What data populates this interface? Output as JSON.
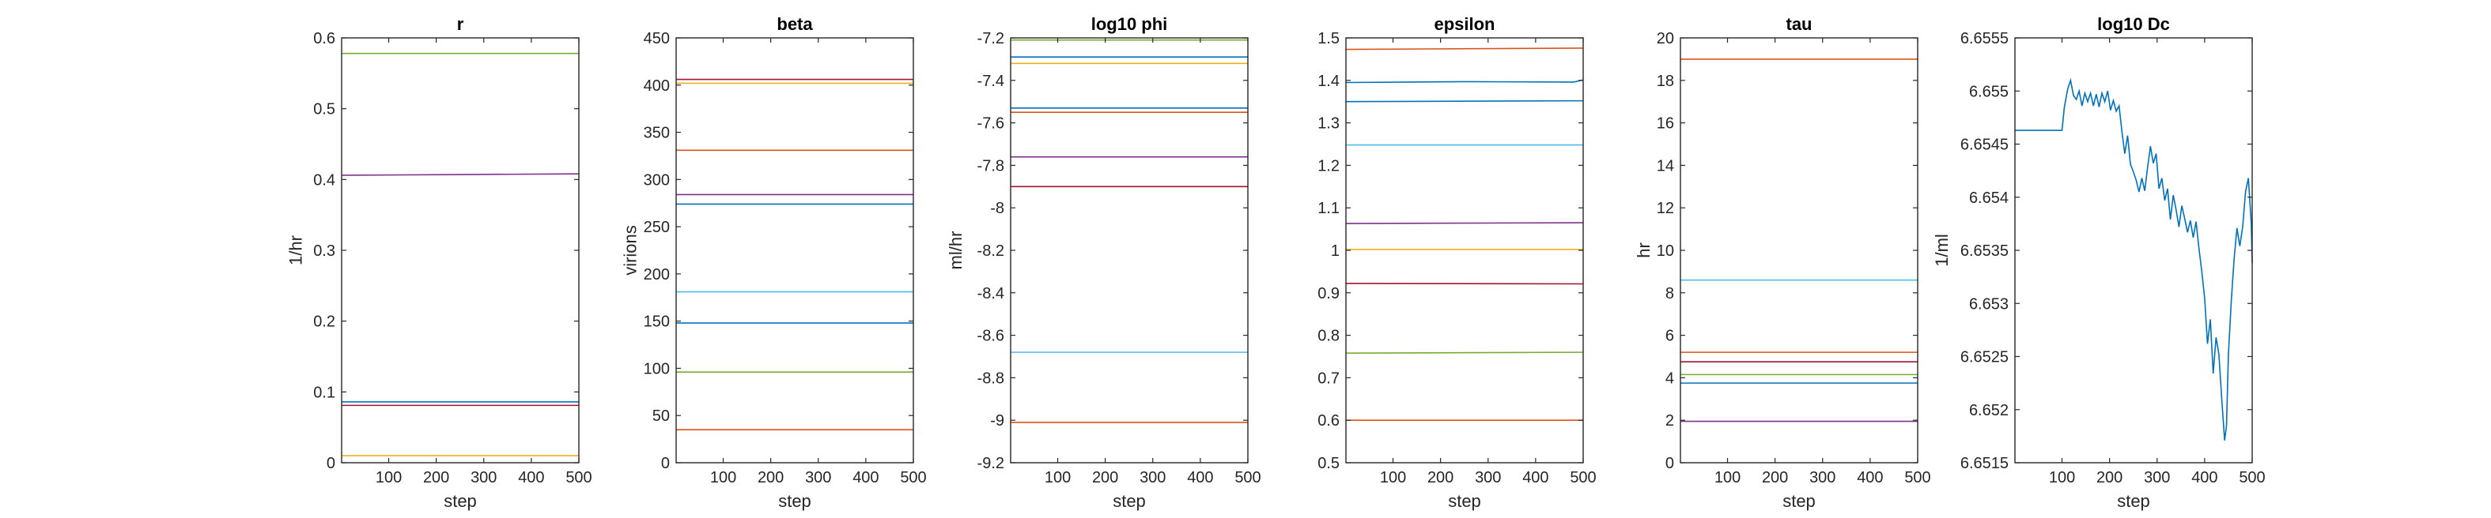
{
  "chart_data": [
    {
      "type": "line",
      "title": "r",
      "xlabel": "step",
      "ylabel": "1/hr",
      "xlim": [
        1,
        500
      ],
      "ylim": [
        0,
        0.6
      ],
      "xticks": [
        100,
        200,
        300,
        400,
        500
      ],
      "yticks": [
        0,
        0.1,
        0.2,
        0.3,
        0.4,
        0.5,
        0.6
      ],
      "xtick_labels": [
        "100",
        "200",
        "300",
        "400",
        "500"
      ],
      "ytick_labels": [
        "0",
        "0.1",
        "0.2",
        "0.3",
        "0.4",
        "0.5",
        "0.6"
      ],
      "series": [
        {
          "color": "#77ac30",
          "x": [
            1,
            500
          ],
          "y": [
            0.578,
            0.578
          ]
        },
        {
          "color": "#7e2f8e",
          "x": [
            1,
            250,
            500
          ],
          "y": [
            0.406,
            0.407,
            0.408
          ]
        },
        {
          "color": "#0072bd",
          "x": [
            1,
            500
          ],
          "y": [
            0.086,
            0.086
          ]
        },
        {
          "color": "#a2142f",
          "x": [
            1,
            500
          ],
          "y": [
            0.081,
            0.081
          ]
        },
        {
          "color": "#edb120",
          "x": [
            1,
            500
          ],
          "y": [
            0.01,
            0.01
          ]
        }
      ]
    },
    {
      "type": "line",
      "title": "beta",
      "xlabel": "step",
      "ylabel": "virions",
      "xlim": [
        1,
        500
      ],
      "ylim": [
        0,
        450
      ],
      "xticks": [
        100,
        200,
        300,
        400,
        500
      ],
      "yticks": [
        0,
        50,
        100,
        150,
        200,
        250,
        300,
        350,
        400,
        450
      ],
      "xtick_labels": [
        "100",
        "200",
        "300",
        "400",
        "500"
      ],
      "ytick_labels": [
        "0",
        "50",
        "100",
        "150",
        "200",
        "250",
        "300",
        "350",
        "400",
        "450"
      ],
      "series": [
        {
          "color": "#a2142f",
          "x": [
            1,
            500
          ],
          "y": [
            406,
            406
          ]
        },
        {
          "color": "#edb120",
          "x": [
            1,
            500
          ],
          "y": [
            402,
            402
          ]
        },
        {
          "color": "#d95319",
          "x": [
            1,
            500
          ],
          "y": [
            331,
            331
          ]
        },
        {
          "color": "#7e2f8e",
          "x": [
            1,
            500
          ],
          "y": [
            284,
            284
          ]
        },
        {
          "color": "#0072bd",
          "x": [
            1,
            500
          ],
          "y": [
            274,
            274
          ]
        },
        {
          "color": "#4dbeee",
          "x": [
            1,
            500
          ],
          "y": [
            181,
            181
          ]
        },
        {
          "color": "#0072bd",
          "x": [
            1,
            500
          ],
          "y": [
            148,
            148
          ]
        },
        {
          "color": "#77ac30",
          "x": [
            1,
            500
          ],
          "y": [
            96,
            96
          ]
        },
        {
          "color": "#d95319",
          "x": [
            1,
            500
          ],
          "y": [
            35,
            35
          ]
        }
      ]
    },
    {
      "type": "line",
      "title": "log10 phi",
      "xlabel": "step",
      "ylabel": "ml/hr",
      "xlim": [
        1,
        500
      ],
      "ylim": [
        -9.2,
        -7.2
      ],
      "xticks": [
        100,
        200,
        300,
        400,
        500
      ],
      "yticks": [
        -9.2,
        -9,
        -8.8,
        -8.6,
        -8.4,
        -8.2,
        -8,
        -7.8,
        -7.6,
        -7.4,
        -7.2
      ],
      "xtick_labels": [
        "100",
        "200",
        "300",
        "400",
        "500"
      ],
      "ytick_labels": [
        "-9.2",
        "-9",
        "-8.8",
        "-8.6",
        "-8.4",
        "-8.2",
        "-8",
        "-7.8",
        "-7.6",
        "-7.4",
        "-7.2"
      ],
      "series": [
        {
          "color": "#77ac30",
          "x": [
            1,
            500
          ],
          "y": [
            -7.21,
            -7.21
          ]
        },
        {
          "color": "#0072bd",
          "x": [
            1,
            500
          ],
          "y": [
            -7.29,
            -7.29
          ]
        },
        {
          "color": "#edb120",
          "x": [
            1,
            500
          ],
          "y": [
            -7.32,
            -7.32
          ]
        },
        {
          "color": "#0072bd",
          "x": [
            1,
            500
          ],
          "y": [
            -7.53,
            -7.53
          ]
        },
        {
          "color": "#d95319",
          "x": [
            1,
            500
          ],
          "y": [
            -7.55,
            -7.55
          ]
        },
        {
          "color": "#7e2f8e",
          "x": [
            1,
            500
          ],
          "y": [
            -7.76,
            -7.76
          ]
        },
        {
          "color": "#a2142f",
          "x": [
            1,
            500
          ],
          "y": [
            -7.9,
            -7.9
          ]
        },
        {
          "color": "#4dbeee",
          "x": [
            1,
            500
          ],
          "y": [
            -8.68,
            -8.68
          ]
        },
        {
          "color": "#d95319",
          "x": [
            1,
            500
          ],
          "y": [
            -9.01,
            -9.01
          ]
        }
      ]
    },
    {
      "type": "line",
      "title": "epsilon",
      "xlabel": "step",
      "ylabel": "",
      "xlim": [
        1,
        500
      ],
      "ylim": [
        0.5,
        1.5
      ],
      "xticks": [
        100,
        200,
        300,
        400,
        500
      ],
      "yticks": [
        0.5,
        0.6,
        0.7,
        0.8,
        0.9,
        1,
        1.1,
        1.2,
        1.3,
        1.4,
        1.5
      ],
      "xtick_labels": [
        "100",
        "200",
        "300",
        "400",
        "500"
      ],
      "ytick_labels": [
        "0.5",
        "0.6",
        "0.7",
        "0.8",
        "0.9",
        "1",
        "1.1",
        "1.2",
        "1.3",
        "1.4",
        "1.5"
      ],
      "series": [
        {
          "color": "#d95319",
          "x": [
            1,
            500
          ],
          "y": [
            1.473,
            1.476
          ]
        },
        {
          "color": "#0072bd",
          "x": [
            1,
            250,
            480,
            500
          ],
          "y": [
            1.395,
            1.397,
            1.396,
            1.401
          ]
        },
        {
          "color": "#0072bd",
          "x": [
            1,
            500
          ],
          "y": [
            1.35,
            1.352
          ]
        },
        {
          "color": "#4dbeee",
          "x": [
            1,
            500
          ],
          "y": [
            1.248,
            1.248
          ]
        },
        {
          "color": "#7e2f8e",
          "x": [
            1,
            500
          ],
          "y": [
            1.063,
            1.065
          ]
        },
        {
          "color": "#edb120",
          "x": [
            1,
            500
          ],
          "y": [
            1.002,
            1.002
          ]
        },
        {
          "color": "#a2142f",
          "x": [
            1,
            500
          ],
          "y": [
            0.922,
            0.921
          ]
        },
        {
          "color": "#77ac30",
          "x": [
            1,
            500
          ],
          "y": [
            0.758,
            0.76
          ]
        },
        {
          "color": "#d95319",
          "x": [
            1,
            500
          ],
          "y": [
            0.6,
            0.6
          ]
        }
      ]
    },
    {
      "type": "line",
      "title": "tau",
      "xlabel": "step",
      "ylabel": "hr",
      "xlim": [
        1,
        500
      ],
      "ylim": [
        0,
        20
      ],
      "xticks": [
        100,
        200,
        300,
        400,
        500
      ],
      "yticks": [
        0,
        2,
        4,
        6,
        8,
        10,
        12,
        14,
        16,
        18,
        20
      ],
      "xtick_labels": [
        "100",
        "200",
        "300",
        "400",
        "500"
      ],
      "ytick_labels": [
        "0",
        "2",
        "4",
        "6",
        "8",
        "10",
        "12",
        "14",
        "16",
        "18",
        "20"
      ],
      "series": [
        {
          "color": "#d95319",
          "x": [
            1,
            500
          ],
          "y": [
            19.0,
            19.0
          ]
        },
        {
          "color": "#4dbeee",
          "x": [
            1,
            500
          ],
          "y": [
            8.6,
            8.6
          ]
        },
        {
          "color": "#d95319",
          "x": [
            1,
            500
          ],
          "y": [
            5.2,
            5.2
          ]
        },
        {
          "color": "#a2142f",
          "x": [
            1,
            500
          ],
          "y": [
            4.75,
            4.75
          ]
        },
        {
          "color": "#77ac30",
          "x": [
            1,
            500
          ],
          "y": [
            4.15,
            4.15
          ]
        },
        {
          "color": "#0072bd",
          "x": [
            1,
            500
          ],
          "y": [
            3.75,
            3.75
          ]
        },
        {
          "color": "#7e2f8e",
          "x": [
            1,
            500
          ],
          "y": [
            1.95,
            1.95
          ]
        }
      ]
    },
    {
      "type": "line",
      "title": "log10 Dc",
      "xlabel": "step",
      "ylabel": "1/ml",
      "xlim": [
        1,
        500
      ],
      "ylim": [
        6.6515,
        6.6555
      ],
      "xticks": [
        100,
        200,
        300,
        400,
        500
      ],
      "yticks": [
        6.6515,
        6.652,
        6.6525,
        6.653,
        6.6535,
        6.654,
        6.6545,
        6.655,
        6.6555
      ],
      "xtick_labels": [
        "100",
        "200",
        "300",
        "400",
        "500"
      ],
      "ytick_labels": [
        "6.6515",
        "6.652",
        "6.6525",
        "6.653",
        "6.6535",
        "6.654",
        "6.6545",
        "6.655",
        "6.6555"
      ],
      "series": [
        {
          "color": "#0072bd",
          "x": [
            1,
            100,
            105,
            112,
            118,
            124,
            130,
            136,
            142,
            148,
            154,
            160,
            166,
            172,
            178,
            184,
            190,
            196,
            202,
            208,
            214,
            220,
            226,
            232,
            238,
            244,
            250,
            256,
            262,
            268,
            274,
            280,
            286,
            292,
            298,
            304,
            310,
            316,
            322,
            328,
            334,
            340,
            346,
            352,
            358,
            364,
            370,
            376,
            382,
            388,
            394,
            400,
            406,
            412,
            418,
            424,
            430,
            436,
            442,
            446,
            450,
            456,
            462,
            468,
            474,
            480,
            486,
            492,
            498,
            500
          ],
          "y": [
            6.65463,
            6.65463,
            6.65485,
            6.65502,
            6.6551,
            6.65496,
            6.65492,
            6.655,
            6.65486,
            6.65498,
            6.6549,
            6.65498,
            6.65486,
            6.65497,
            6.65485,
            6.65498,
            6.6549,
            6.655,
            6.65482,
            6.65491,
            6.65481,
            6.65486,
            6.65462,
            6.65441,
            6.65458,
            6.65431,
            6.65424,
            6.65416,
            6.65405,
            6.65418,
            6.65406,
            6.65428,
            6.65448,
            6.65432,
            6.65441,
            6.65408,
            6.65418,
            6.65397,
            6.65408,
            6.65379,
            6.65402,
            6.65388,
            6.65372,
            6.65392,
            6.6538,
            6.65367,
            6.65378,
            6.65362,
            6.65377,
            6.65352,
            6.6533,
            6.65305,
            6.65262,
            6.65285,
            6.65234,
            6.65268,
            6.65252,
            6.6521,
            6.65171,
            6.65185,
            6.65252,
            6.65302,
            6.65342,
            6.65371,
            6.65354,
            6.65372,
            6.65405,
            6.65418,
            6.65376,
            6.65338
          ]
        }
      ]
    }
  ]
}
